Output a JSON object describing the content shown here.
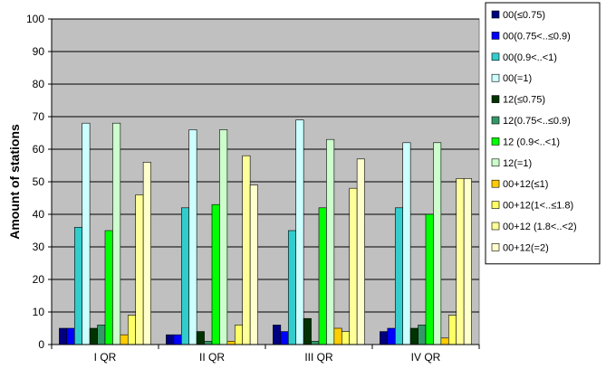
{
  "chart_data": {
    "type": "bar",
    "title": "",
    "xlabel": "",
    "ylabel": "Amount of stations",
    "ylim": [
      0,
      100
    ],
    "yticks": [
      0,
      10,
      20,
      30,
      40,
      50,
      60,
      70,
      80,
      90,
      100
    ],
    "grid": "horizontal",
    "legend_position": "right",
    "plot_background": "#c0c0c0",
    "categories": [
      "I QR",
      "II QR",
      "III QR",
      "IV QR"
    ],
    "series": [
      {
        "name": "00(≤0.75)",
        "color": "#000080",
        "values": [
          5,
          3,
          6,
          4
        ]
      },
      {
        "name": "00(0.75<..≤0.9)",
        "color": "#0000ff",
        "values": [
          5,
          3,
          4,
          5
        ]
      },
      {
        "name": "00(0.9<..<1)",
        "color": "#33cccc",
        "values": [
          36,
          42,
          35,
          42
        ]
      },
      {
        "name": "00(=1)",
        "color": "#ccffff",
        "values": [
          68,
          66,
          69,
          62
        ]
      },
      {
        "name": "12(≤0.75)",
        "color": "#003300",
        "values": [
          5,
          4,
          8,
          5
        ]
      },
      {
        "name": "12(0.75<..≤0.9)",
        "color": "#339966",
        "values": [
          6,
          1,
          1,
          6
        ]
      },
      {
        "name": "12 (0.9<..<1)",
        "color": "#00ff00",
        "values": [
          35,
          43,
          42,
          40
        ]
      },
      {
        "name": "12(=1)",
        "color": "#ccffcc",
        "values": [
          68,
          66,
          63,
          62
        ]
      },
      {
        "name": "00+12(≤1)",
        "color": "#ffcc00",
        "values": [
          3,
          1,
          5,
          2
        ]
      },
      {
        "name": "00+12(1<..≤1.8)",
        "color": "#ffff66",
        "values": [
          9,
          6,
          4,
          9
        ]
      },
      {
        "name": "00+12 (1.8<..<2)",
        "color": "#ffff99",
        "values": [
          46,
          58,
          48,
          51
        ]
      },
      {
        "name": "00+12(=2)",
        "color": "#ffffcc",
        "values": [
          56,
          49,
          57,
          51
        ]
      }
    ]
  }
}
